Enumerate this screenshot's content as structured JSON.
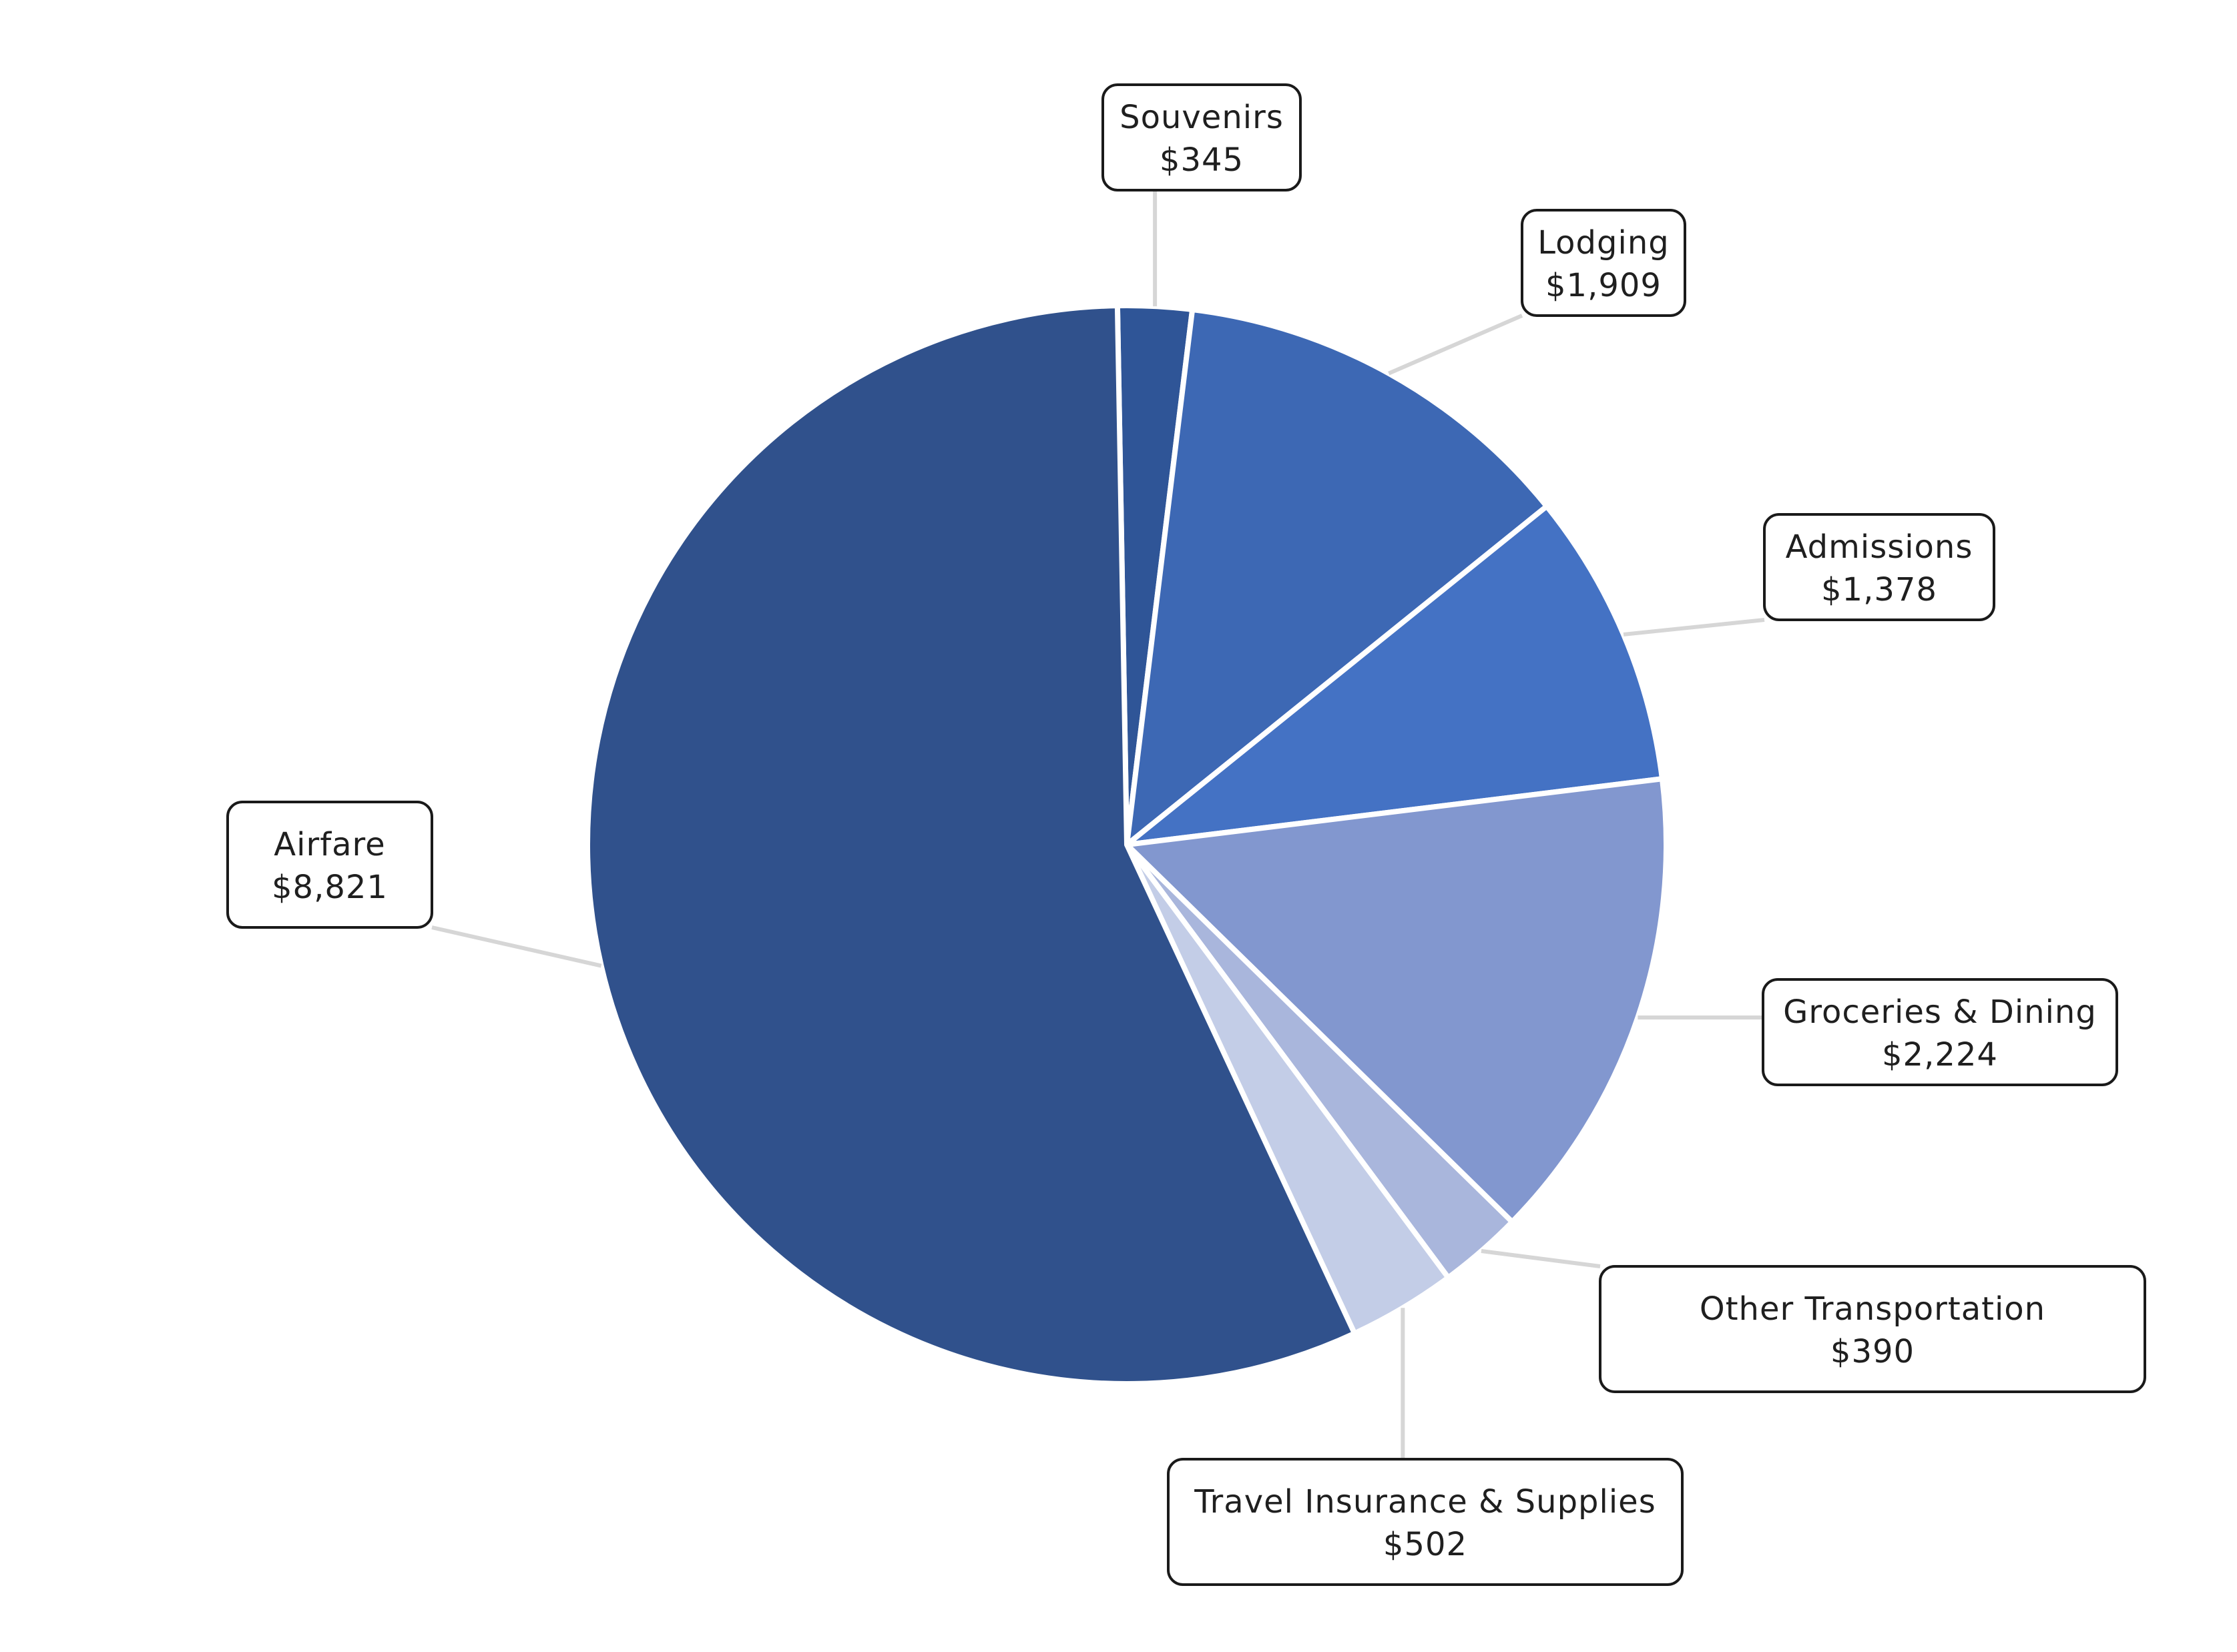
{
  "chart_data": {
    "type": "pie",
    "title": "",
    "currency_symbol": "$",
    "start_angle_deg": -1,
    "direction": "clockwise",
    "slices": [
      {
        "label": "Souvenirs",
        "value": 345,
        "display": "$345",
        "color": "#2f5597"
      },
      {
        "label": "Lodging",
        "value": 1909,
        "display": "$1,909",
        "color": "#3d68b4"
      },
      {
        "label": "Admissions",
        "value": 1378,
        "display": "$1,378",
        "color": "#4472c4"
      },
      {
        "label": "Groceries & Dining",
        "value": 2224,
        "display": "$2,224",
        "color": "#8297cf"
      },
      {
        "label": "Other Transportation",
        "value": 390,
        "display": "$390",
        "color": "#a9b6dc"
      },
      {
        "label": "Travel Insurance & Supplies",
        "value": 502,
        "display": "$502",
        "color": "#c3cde7"
      },
      {
        "label": "Airfare",
        "value": 8821,
        "display": "$8,821",
        "color": "#30518c"
      }
    ],
    "label_style": "boxed labels with leader lines",
    "legend": "none"
  }
}
